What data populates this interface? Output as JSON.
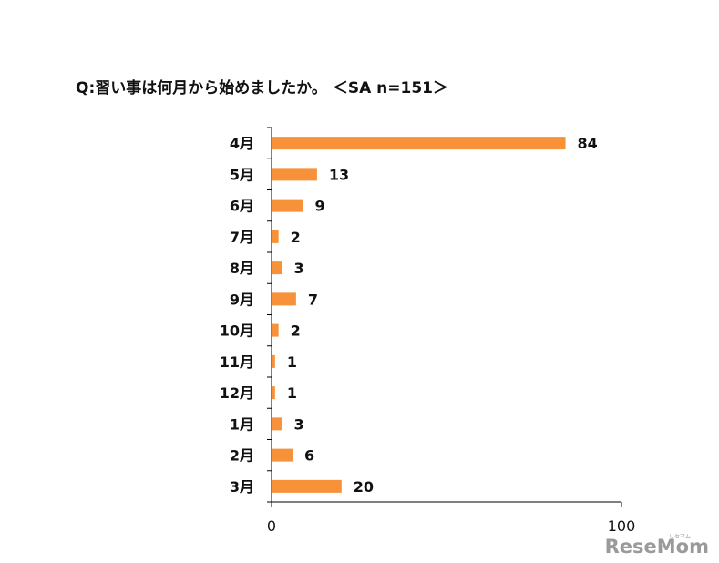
{
  "chart_data": {
    "type": "bar",
    "orientation": "horizontal",
    "title": "Q:習い事は何月から始めましたか。 ＜SA n=151＞",
    "categories": [
      "4月",
      "5月",
      "6月",
      "7月",
      "8月",
      "9月",
      "10月",
      "11月",
      "12月",
      "1月",
      "2月",
      "3月"
    ],
    "values": [
      84,
      13,
      9,
      2,
      3,
      7,
      2,
      1,
      1,
      3,
      6,
      20
    ],
    "xlim": [
      0,
      100
    ],
    "xticks": [
      "0",
      "100"
    ],
    "bar_color": "#f7923a",
    "grid": false,
    "legend": "none"
  },
  "watermark": {
    "main": "ReseMom",
    "sub": "リセマム"
  }
}
